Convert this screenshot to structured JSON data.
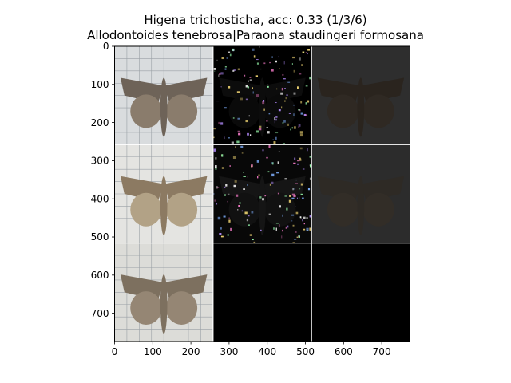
{
  "chart_data": {
    "type": "image-grid",
    "title": "Higena trichosticha, acc: 0.33 (1/3/6)",
    "subtitle": "Allodontoides tenebrosa|Paraona staudingeri formosana",
    "xlim": [
      0,
      774
    ],
    "ylim": [
      774,
      0
    ],
    "x_ticks": [
      0,
      100,
      200,
      300,
      400,
      500,
      600,
      700
    ],
    "y_ticks": [
      0,
      100,
      200,
      300,
      400,
      500,
      600,
      700
    ],
    "grid": {
      "rows": 3,
      "cols": 3,
      "cell_size": 258
    },
    "tiles": [
      {
        "row": 0,
        "col": 0,
        "kind": "photo",
        "bg": "#d9dcde",
        "wing": "#6e6358",
        "hind": "#8a7c6c"
      },
      {
        "row": 0,
        "col": 1,
        "kind": "saliency",
        "bg": "#000000",
        "wing": "#0c0c0c",
        "hind": "#0a0a0a"
      },
      {
        "row": 0,
        "col": 2,
        "kind": "masked",
        "bg": "#2e2e2e",
        "wing": "#2a241e",
        "hind": "#2f2923"
      },
      {
        "row": 1,
        "col": 0,
        "kind": "photo",
        "bg": "#e4e4e1",
        "wing": "#8c7a62",
        "hind": "#b2a286"
      },
      {
        "row": 1,
        "col": 1,
        "kind": "saliency",
        "bg": "#080808",
        "wing": "#151515",
        "hind": "#111111"
      },
      {
        "row": 1,
        "col": 2,
        "kind": "masked",
        "bg": "#2c2c2c",
        "wing": "#2e2a25",
        "hind": "#322d27"
      },
      {
        "row": 2,
        "col": 0,
        "kind": "photo",
        "bg": "#dcdcd8",
        "wing": "#7d705f",
        "hind": "#958674"
      },
      {
        "row": 2,
        "col": 1,
        "kind": "empty",
        "bg": "#000000"
      },
      {
        "row": 2,
        "col": 2,
        "kind": "empty",
        "bg": "#000000"
      }
    ]
  }
}
